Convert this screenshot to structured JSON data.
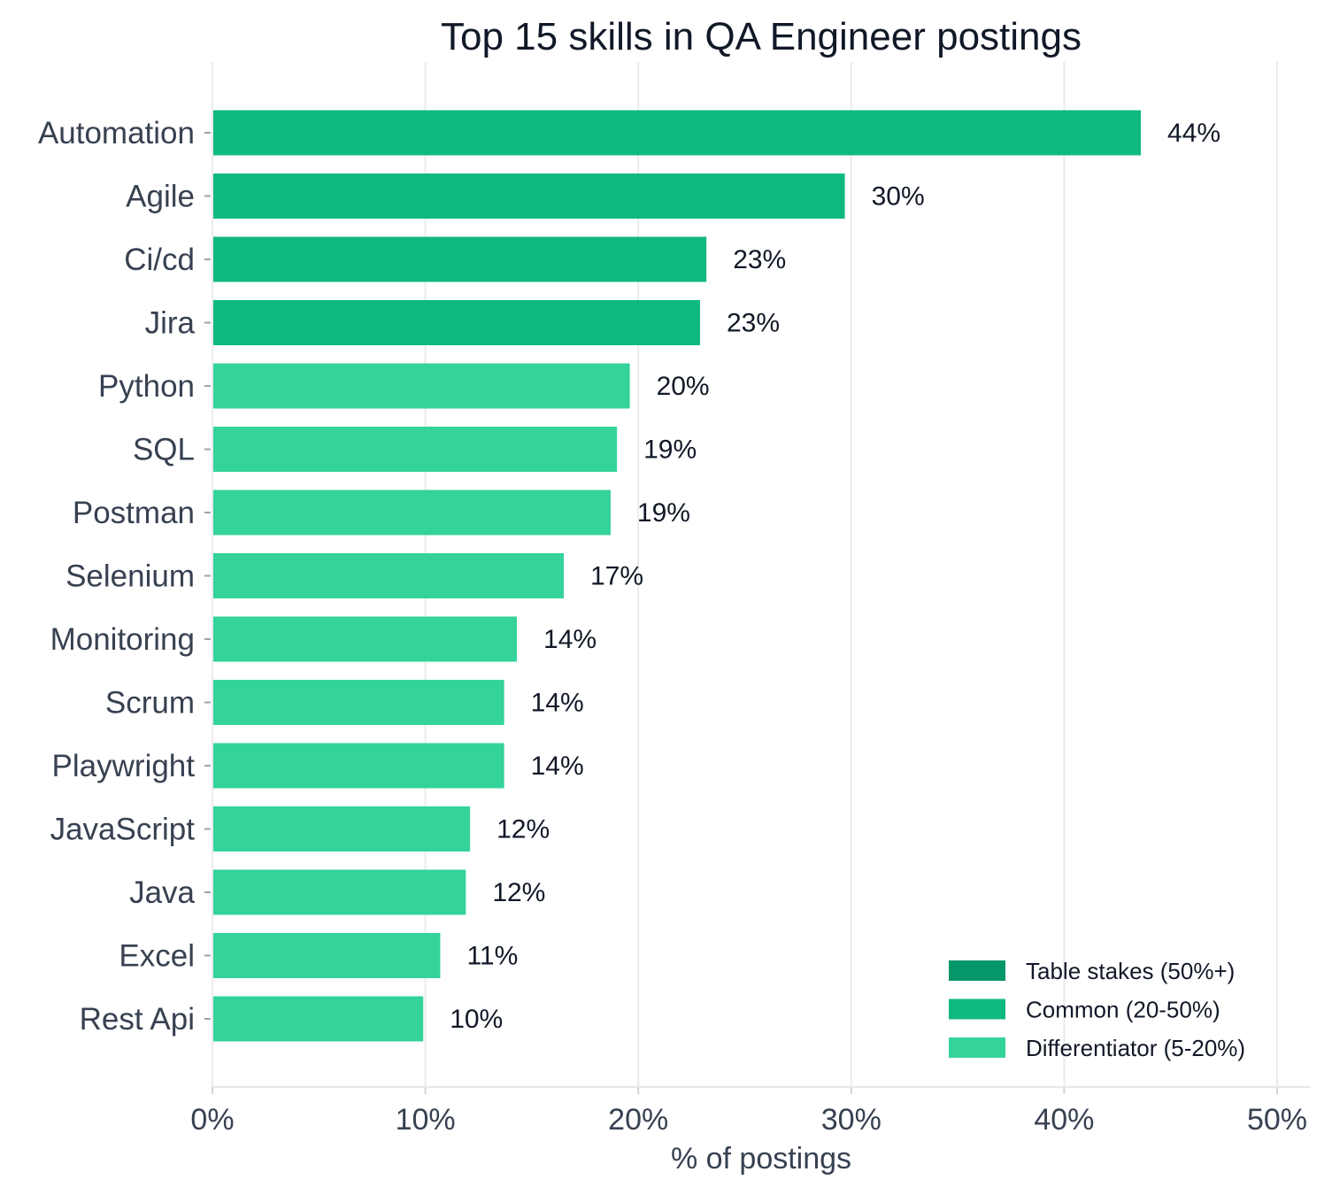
{
  "chart_data": {
    "type": "bar",
    "orientation": "horizontal",
    "title": "Top 15 skills in QA Engineer postings",
    "xlabel": "% of postings",
    "ylabel": "",
    "xlim": [
      0,
      50
    ],
    "xticks": [
      0,
      10,
      20,
      30,
      40,
      50
    ],
    "xtick_labels": [
      "0%",
      "10%",
      "20%",
      "30%",
      "40%",
      "50%"
    ],
    "grid": "vertical",
    "legend_position": "bottom-right",
    "legend": [
      {
        "label": "Table stakes (50%+)",
        "color": "#059669"
      },
      {
        "label": "Common (20-50%)",
        "color": "#10b981"
      },
      {
        "label": "Differentiator (5-20%)",
        "color": "#34d399"
      }
    ],
    "categories": [
      "Automation",
      "Agile",
      "Ci/cd",
      "Jira",
      "Python",
      "SQL",
      "Postman",
      "Selenium",
      "Monitoring",
      "Scrum",
      "Playwright",
      "JavaScript",
      "Java",
      "Excel",
      "Rest Api"
    ],
    "values": [
      43.6,
      29.7,
      23.2,
      22.9,
      19.6,
      19.0,
      18.7,
      16.5,
      14.3,
      13.7,
      13.7,
      12.1,
      11.9,
      10.7,
      9.9
    ],
    "value_labels": [
      "44%",
      "30%",
      "23%",
      "23%",
      "20%",
      "19%",
      "19%",
      "17%",
      "14%",
      "14%",
      "14%",
      "12%",
      "12%",
      "11%",
      "10%"
    ],
    "bar_colors": [
      "#10b981",
      "#10b981",
      "#10b981",
      "#10b981",
      "#34d399",
      "#34d399",
      "#34d399",
      "#34d399",
      "#34d399",
      "#34d399",
      "#34d399",
      "#34d399",
      "#34d399",
      "#34d399",
      "#34d399"
    ]
  }
}
